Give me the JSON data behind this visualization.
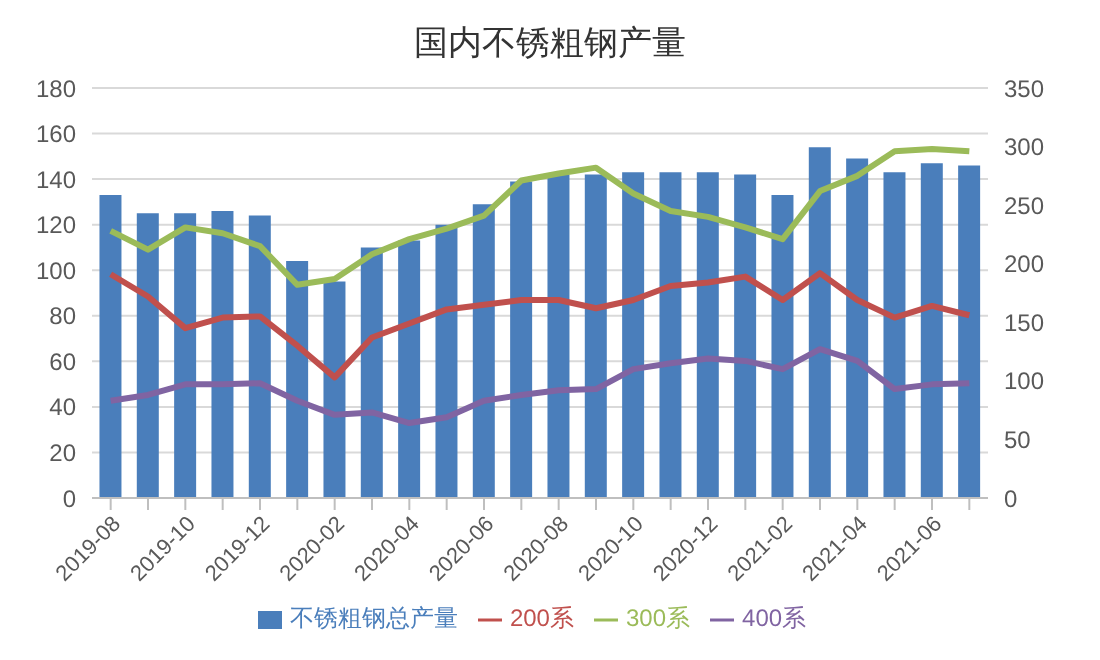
{
  "chart_data": {
    "type": "bar",
    "title": "国内不锈粗钢产量",
    "categories": [
      "2019-08",
      null,
      "2019-10",
      null,
      "2019-12",
      null,
      "2020-02",
      null,
      "2020-04",
      null,
      "2020-06",
      null,
      "2020-08",
      null,
      "2020-10",
      null,
      "2020-12",
      null,
      "2021-02",
      null,
      "2021-04",
      null,
      "2021-06",
      null
    ],
    "series": [
      {
        "name": "不锈粗钢总产量",
        "color": "#4a7ebb",
        "values": [
          133,
          125,
          125,
          126,
          124,
          104,
          95,
          110,
          113,
          120,
          129,
          139,
          142,
          142,
          143,
          143,
          143,
          142,
          133,
          154,
          149,
          143,
          147,
          146
        ]
      },
      {
        "name": "200系",
        "type": "line",
        "axis": "y2",
        "color": "#c0504d",
        "values": [
          191,
          172,
          145,
          154,
          155,
          130,
          103,
          137,
          149,
          161,
          165,
          169,
          169,
          162,
          169,
          181,
          184,
          189,
          169,
          192,
          169,
          154,
          164,
          156
        ]
      },
      {
        "name": "300系",
        "type": "line",
        "axis": "y2",
        "color": "#9bbb59",
        "values": [
          228,
          212,
          231,
          226,
          215,
          182,
          187,
          208,
          221,
          230,
          241,
          271,
          277,
          282,
          260,
          245,
          240,
          231,
          221,
          262,
          275,
          296,
          298,
          296
        ]
      },
      {
        "name": "400系",
        "type": "line",
        "axis": "y2",
        "color": "#8064a2",
        "values": [
          83,
          88,
          97,
          97,
          98,
          83,
          71,
          73,
          64,
          69,
          83,
          88,
          92,
          93,
          110,
          115,
          119,
          117,
          110,
          127,
          117,
          93,
          97,
          98
        ]
      }
    ],
    "ylim": [
      0,
      180
    ],
    "yticks": [
      0,
      20,
      40,
      60,
      80,
      100,
      120,
      140,
      160,
      180
    ],
    "y2lim": [
      0,
      350
    ],
    "y2ticks": [
      0,
      50,
      100,
      150,
      200,
      250,
      300,
      350
    ],
    "grid": "y",
    "legend": "bottom",
    "marker": "none",
    "line_style": "solid"
  }
}
